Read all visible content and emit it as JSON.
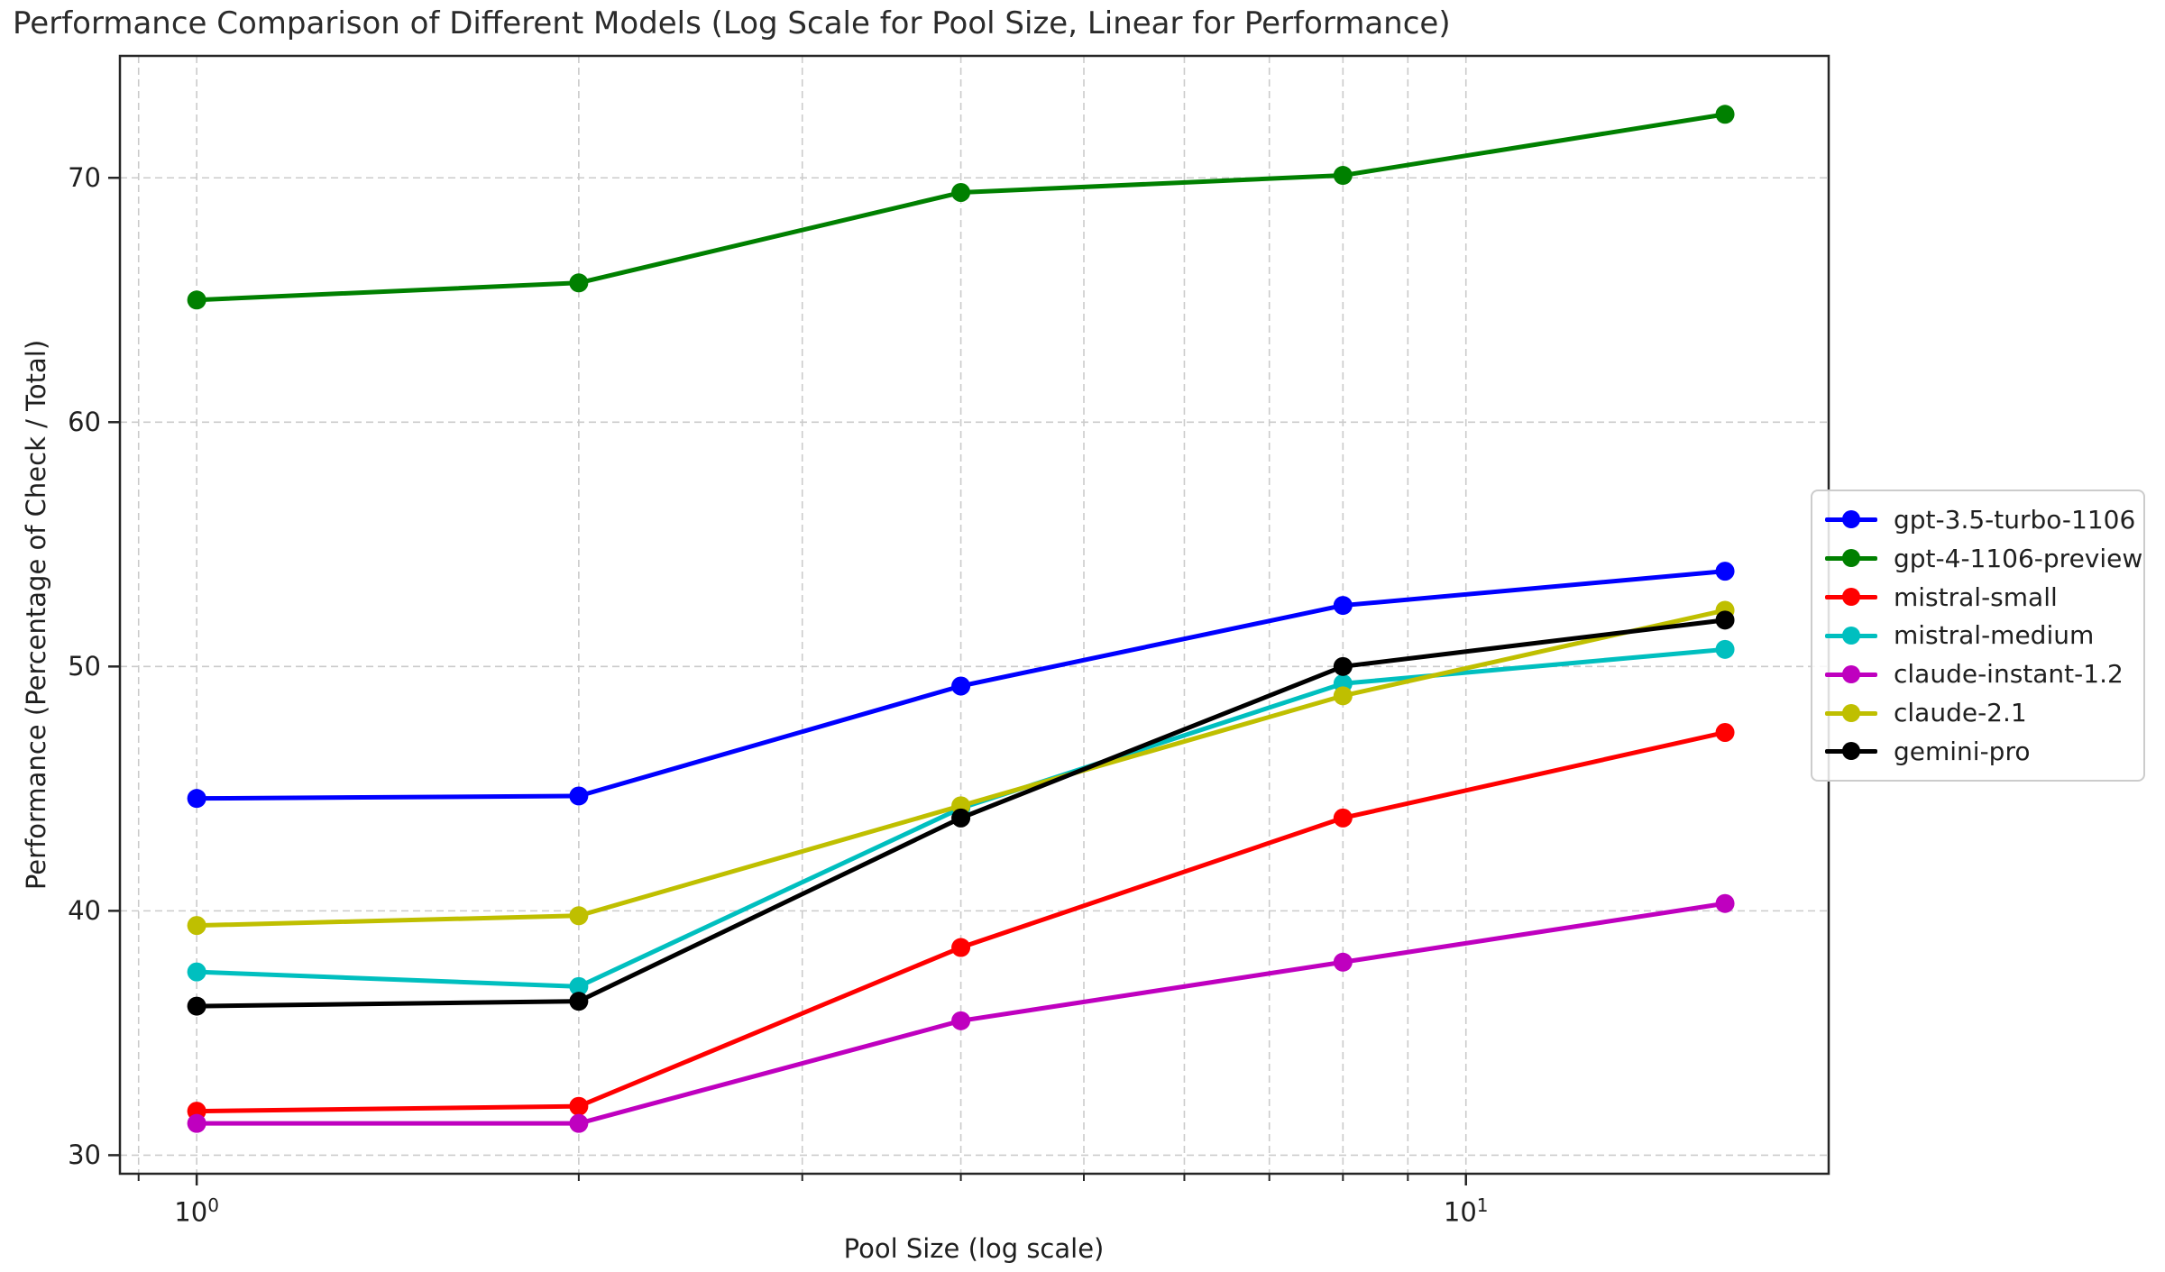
{
  "title": "Performance Comparison of Different Models (Log Scale for Pool Size, Linear for Performance)",
  "chart_data": {
    "type": "line",
    "title": "Performance Comparison of Different Models (Log Scale for Pool Size, Linear for Performance)",
    "xlabel": "Pool Size (log scale)",
    "ylabel": "Performance (Percentage of Check / Total)",
    "x_scale": "log",
    "x": [
      1,
      2,
      4,
      8,
      16
    ],
    "xlim": [
      0.87,
      19.31
    ],
    "ylim": [
      29.24,
      74.99
    ],
    "grid": true,
    "legend_position": "center right",
    "y_ticks": [
      70,
      60,
      50,
      40,
      30
    ],
    "x_major_ticks": [
      {
        "value": 1,
        "base": "10",
        "exp": "0"
      },
      {
        "value": 10,
        "base": "10",
        "exp": "1"
      }
    ],
    "x_minor_ticks": [
      0.9,
      2,
      3,
      4,
      5,
      6,
      7,
      8,
      9
    ],
    "series": [
      {
        "name": "gpt-3.5-turbo-1106",
        "color": "#0000ff",
        "values": [
          44.6,
          44.7,
          49.2,
          52.5,
          53.9
        ]
      },
      {
        "name": "gpt-4-1106-preview",
        "color": "#008000",
        "values": [
          65.0,
          65.7,
          69.4,
          70.1,
          72.6
        ]
      },
      {
        "name": "mistral-small",
        "color": "#ff0000",
        "values": [
          31.8,
          32.0,
          38.5,
          43.8,
          47.3
        ]
      },
      {
        "name": "mistral-medium",
        "color": "#00bfbf",
        "values": [
          37.5,
          36.9,
          44.2,
          49.3,
          50.7
        ]
      },
      {
        "name": "claude-instant-1.2",
        "color": "#bf00bf",
        "values": [
          31.3,
          31.3,
          35.5,
          37.9,
          40.3
        ]
      },
      {
        "name": "claude-2.1",
        "color": "#bfbf00",
        "values": [
          39.4,
          39.8,
          44.3,
          48.8,
          52.3
        ]
      },
      {
        "name": "gemini-pro",
        "color": "#000000",
        "values": [
          36.1,
          36.3,
          43.8,
          50.0,
          51.9
        ]
      }
    ],
    "style": {
      "grid_color": "#cbcbcb",
      "spine_color": "#262626",
      "background": "#ffffff"
    }
  }
}
